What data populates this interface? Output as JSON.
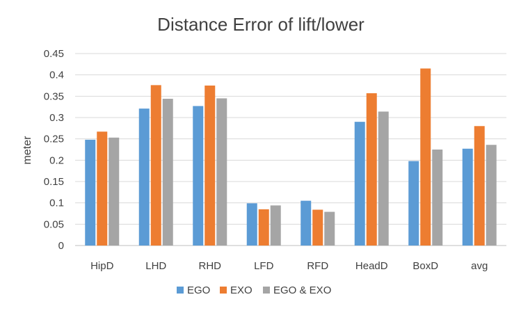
{
  "chart_data": {
    "type": "bar",
    "title": "Distance Error of lift/lower",
    "xlabel": "",
    "ylabel": "meter",
    "ylim": [
      0,
      0.45
    ],
    "yticks": [
      "0",
      "0.05",
      "0.1",
      "0.15",
      "0.2",
      "0.25",
      "0.3",
      "0.35",
      "0.4",
      "0.45"
    ],
    "grid": true,
    "legend_position": "bottom",
    "categories": [
      "HipD",
      "LHD",
      "RHD",
      "LFD",
      "RFD",
      "HeadD",
      "BoxD",
      "avg"
    ],
    "series": [
      {
        "name": "EGO",
        "color": "#5b9bd5",
        "values": [
          0.248,
          0.321,
          0.327,
          0.099,
          0.105,
          0.29,
          0.198,
          0.227
        ]
      },
      {
        "name": "EXO",
        "color": "#ed7d31",
        "values": [
          0.267,
          0.376,
          0.375,
          0.085,
          0.084,
          0.357,
          0.415,
          0.28
        ]
      },
      {
        "name": "EGO & EXO",
        "color": "#a5a5a5",
        "values": [
          0.253,
          0.344,
          0.345,
          0.094,
          0.079,
          0.314,
          0.225,
          0.236
        ]
      }
    ]
  }
}
